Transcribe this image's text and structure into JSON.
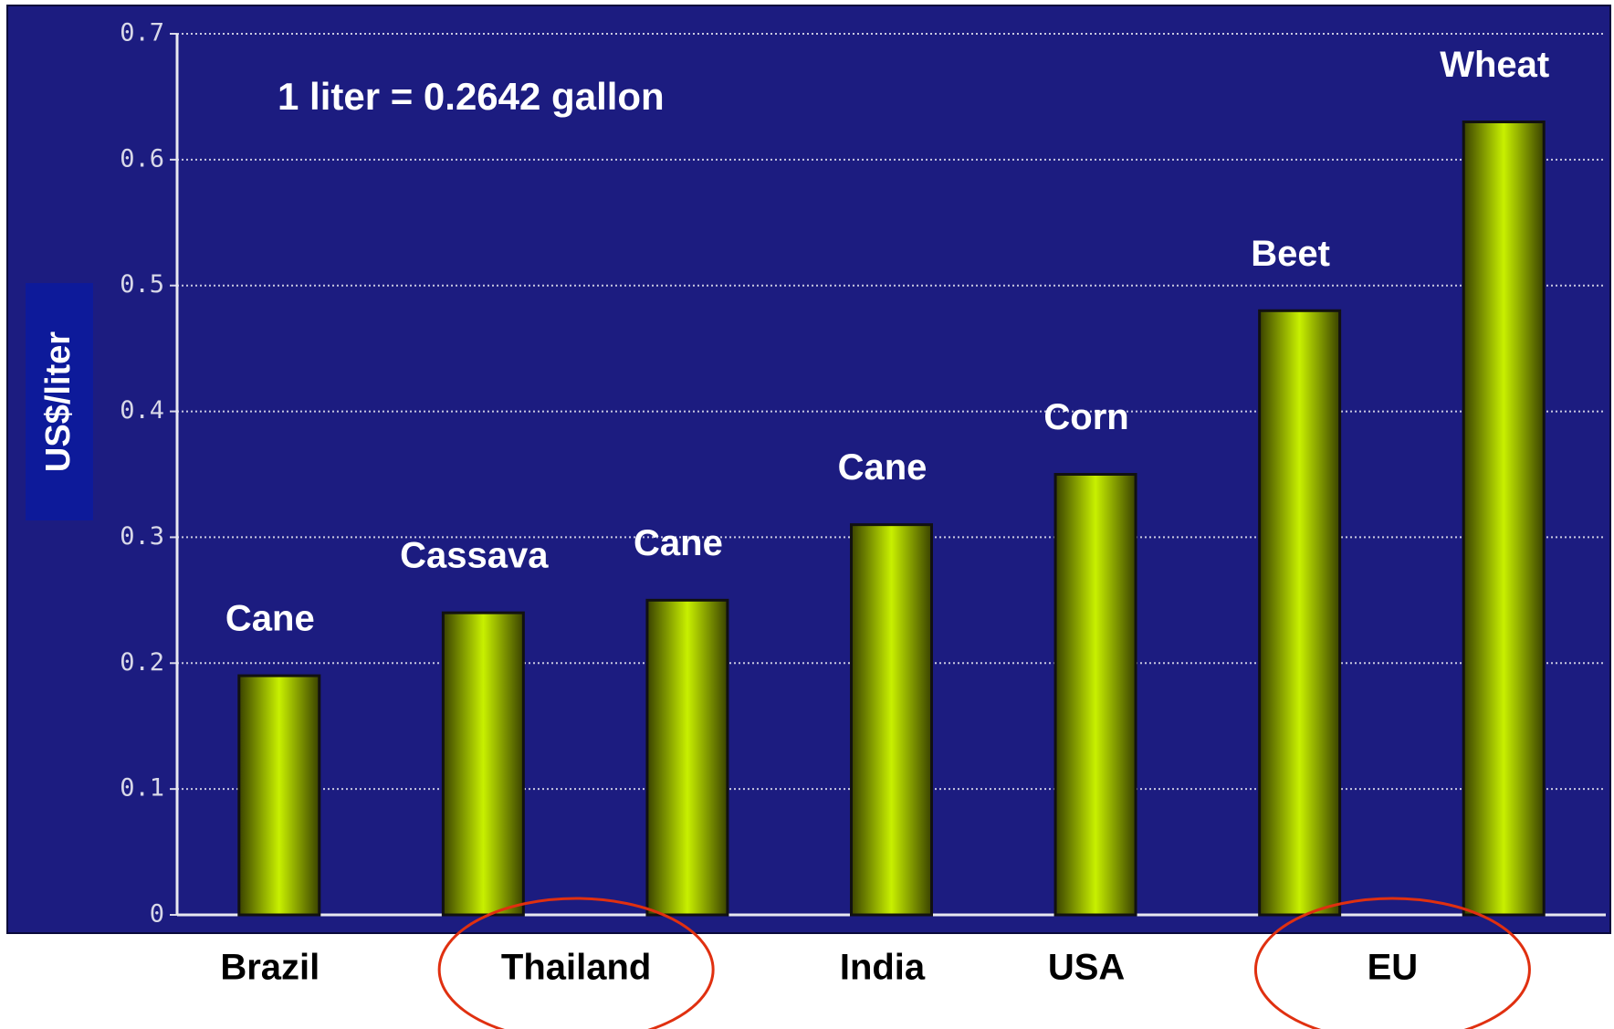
{
  "chart_data": {
    "type": "bar",
    "annotation": "1 liter = 0.2642 gallon",
    "y_label": "US$/liter",
    "categories": [
      "Cane",
      "Cassava",
      "Cane",
      "Cane",
      "Corn",
      "Beet",
      "Wheat"
    ],
    "values": [
      0.19,
      0.24,
      0.25,
      0.31,
      0.35,
      0.48,
      0.63
    ],
    "groups": [
      {
        "label": "Brazil",
        "span": 1,
        "highlight": false
      },
      {
        "label": "Thailand",
        "span": 2,
        "highlight": true
      },
      {
        "label": "India",
        "span": 1,
        "highlight": false
      },
      {
        "label": "USA",
        "span": 1,
        "highlight": false
      },
      {
        "label": "EU",
        "span": 2,
        "highlight": true
      }
    ],
    "color": "#c8f000",
    "ylim": [
      0,
      0.7
    ],
    "yticks": [
      0,
      0.1,
      0.2,
      0.3,
      0.4,
      0.5,
      0.6,
      0.7
    ],
    "grid": true
  }
}
